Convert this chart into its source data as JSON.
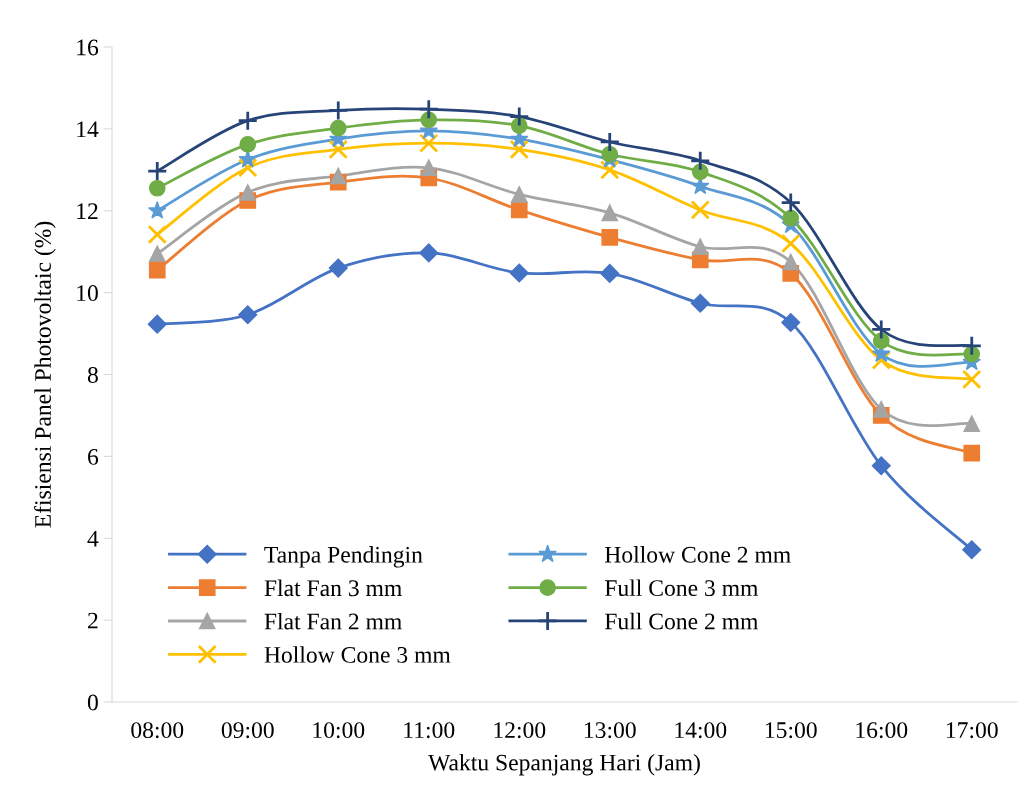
{
  "chart_data": {
    "type": "line",
    "xlabel": "Waktu Sepanjang Hari (Jam)",
    "ylabel": "Efisiensi Panel Photovoltaic (%)",
    "categories": [
      "08:00",
      "09:00",
      "10:00",
      "11:00",
      "12:00",
      "13:00",
      "14:00",
      "15:00",
      "16:00",
      "17:00"
    ],
    "ylim": [
      0,
      16
    ],
    "yticks": [
      0,
      2,
      4,
      6,
      8,
      10,
      12,
      14,
      16
    ],
    "grid": false,
    "legend": "bottom left",
    "series": [
      {
        "name": "Tanpa Pendingin",
        "color": "#4472c4",
        "marker": "diamond",
        "values": [
          9.23,
          9.46,
          10.6,
          10.97,
          10.48,
          10.47,
          9.74,
          9.27,
          5.77,
          3.72
        ]
      },
      {
        "name": "Flat Fan 3 mm",
        "color": "#ed7d31",
        "marker": "square",
        "values": [
          10.55,
          12.25,
          12.7,
          12.8,
          12.02,
          11.35,
          10.8,
          10.47,
          7.0,
          6.08
        ]
      },
      {
        "name": "Flat Fan 2 mm",
        "color": "#a5a5a5",
        "marker": "triangle",
        "values": [
          10.95,
          12.45,
          12.85,
          13.05,
          12.4,
          11.95,
          11.12,
          10.75,
          7.15,
          6.8
        ]
      },
      {
        "name": "Hollow Cone 3 mm",
        "color": "#ffc000",
        "marker": "cross",
        "values": [
          11.42,
          13.05,
          13.5,
          13.65,
          13.5,
          13.0,
          12.02,
          11.2,
          8.35,
          7.88
        ]
      },
      {
        "name": "Hollow Cone 2 mm",
        "color": "#5b9bd5",
        "marker": "star",
        "values": [
          12.0,
          13.25,
          13.75,
          13.95,
          13.75,
          13.25,
          12.6,
          11.65,
          8.5,
          8.3
        ]
      },
      {
        "name": "Full Cone 3 mm",
        "color": "#70ad47",
        "marker": "circle",
        "values": [
          12.55,
          13.62,
          14.02,
          14.22,
          14.08,
          13.38,
          12.95,
          11.82,
          8.82,
          8.5
        ]
      },
      {
        "name": "Full Cone 2 mm",
        "color": "#264478",
        "marker": "plus",
        "values": [
          12.97,
          14.2,
          14.45,
          14.48,
          14.3,
          13.68,
          13.22,
          12.2,
          9.1,
          8.7
        ]
      }
    ]
  }
}
